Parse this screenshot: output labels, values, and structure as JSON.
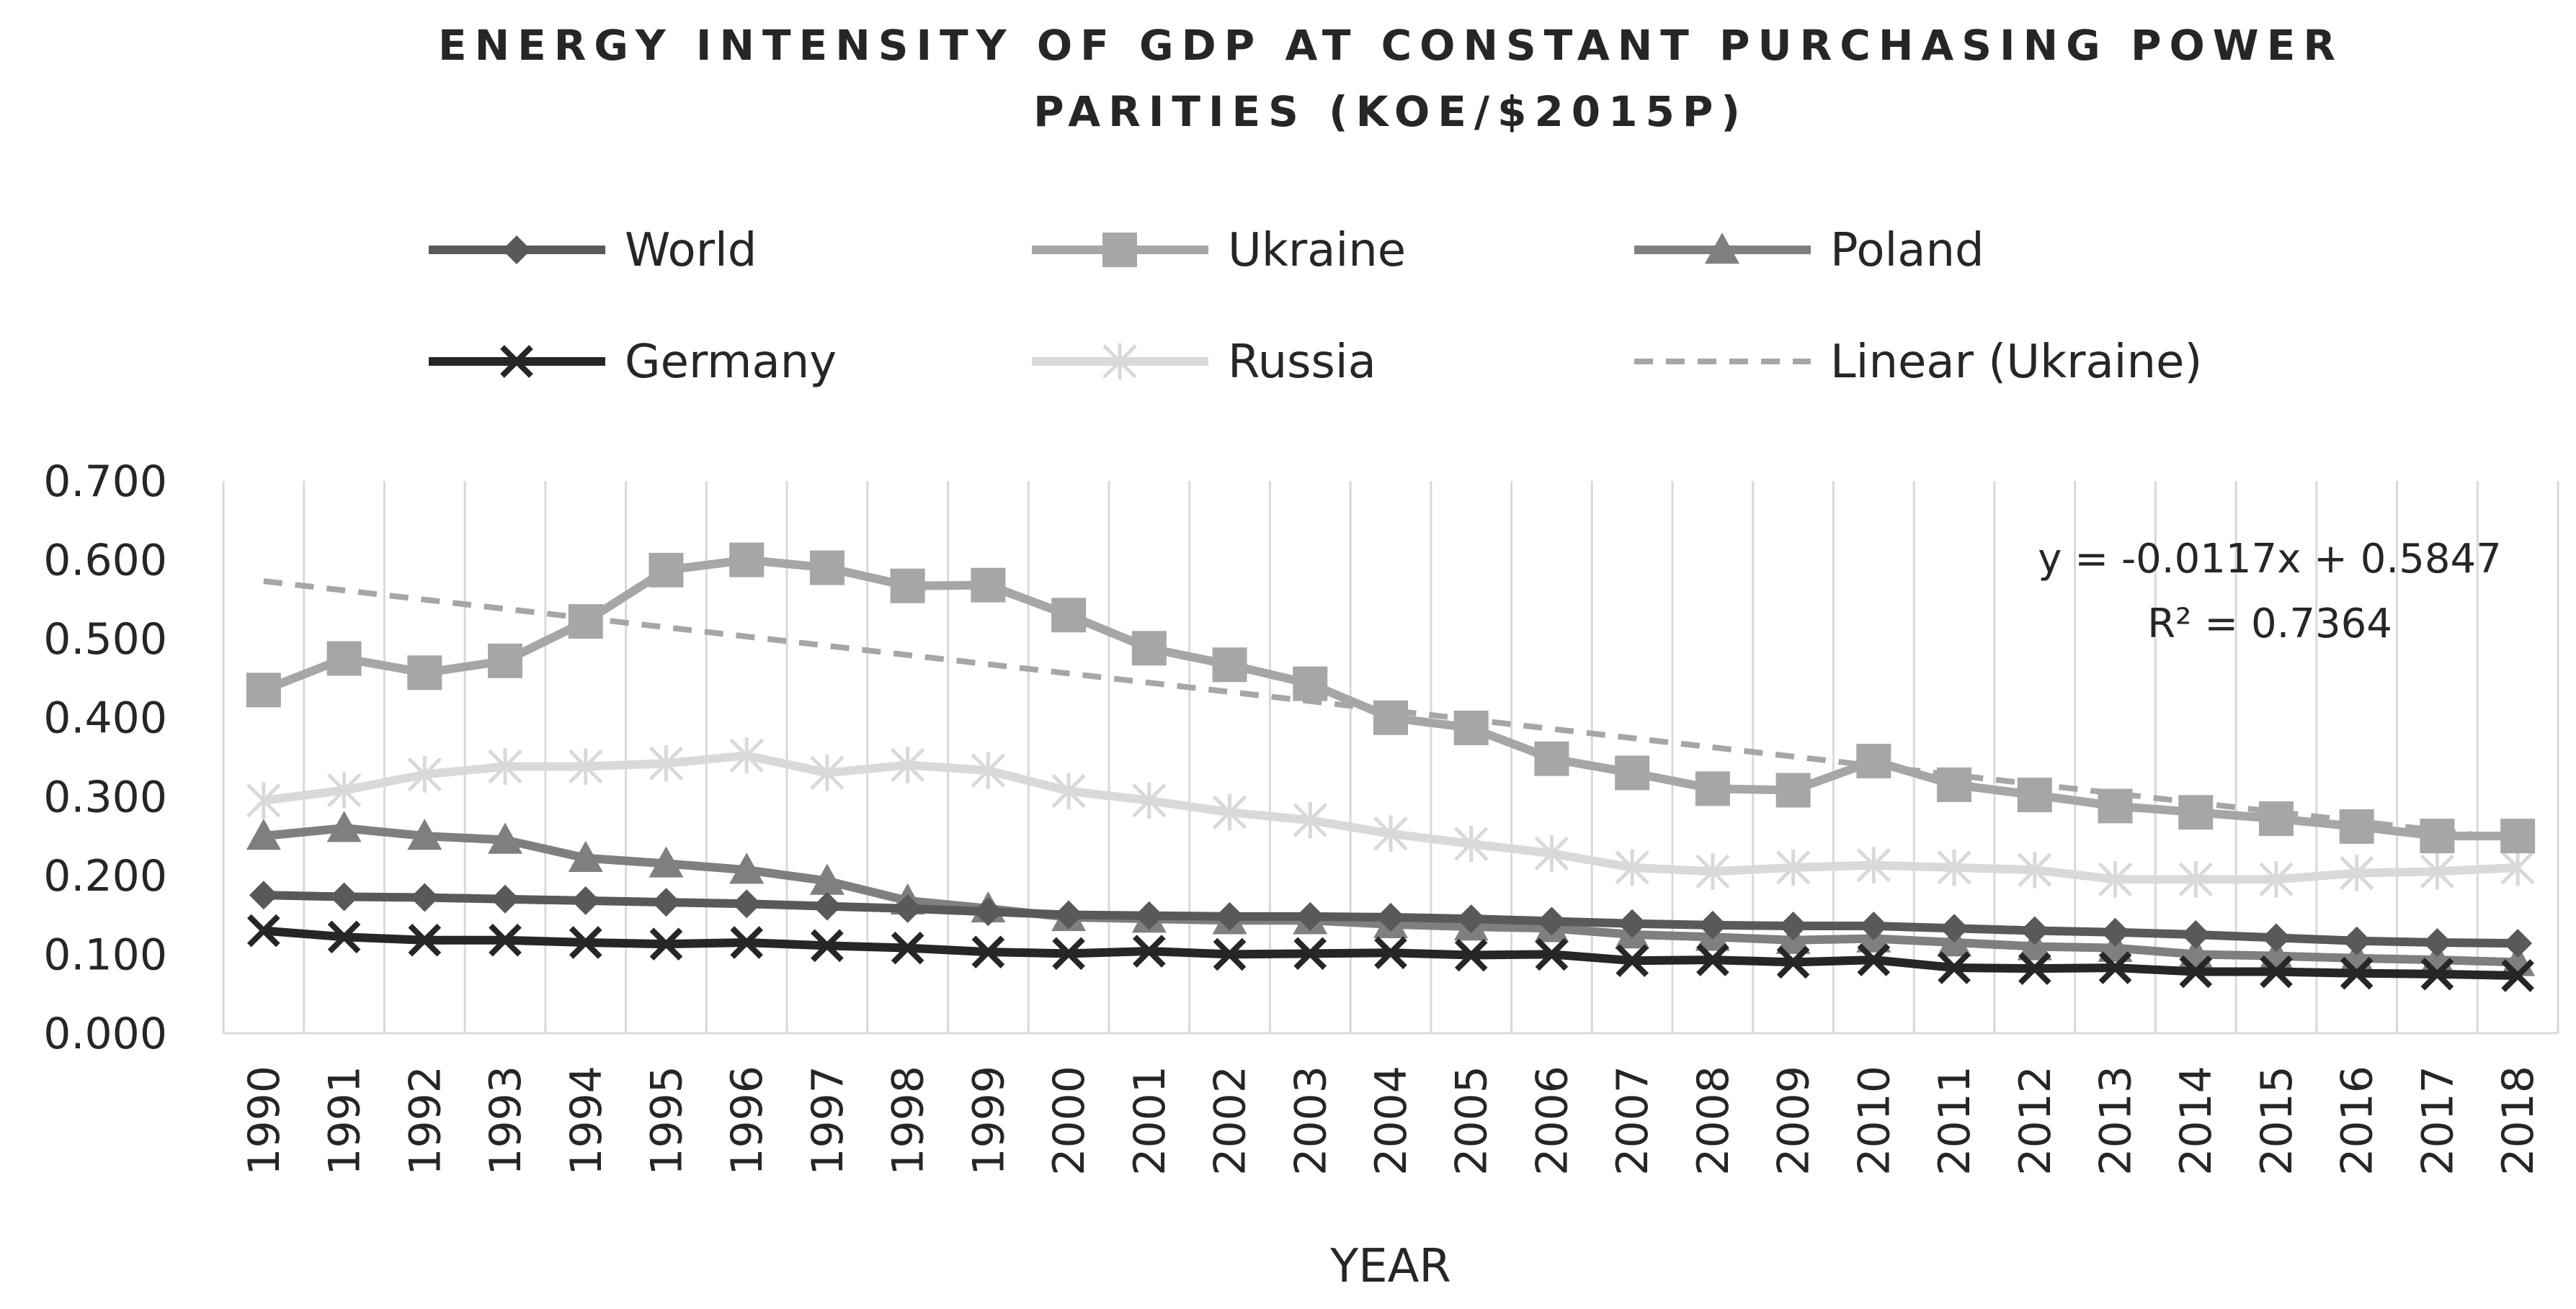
{
  "chart_data": {
    "type": "line",
    "title": "ENERGY INTENSITY OF GDP AT CONSTANT PURCHASING POWER PARITIES (KOE/$2015P)",
    "title_lines": [
      "ENERGY INTENSITY OF GDP AT CONSTANT PURCHASING POWER",
      "PARITIES (KOE/$2015P)"
    ],
    "xlabel": "YEAR",
    "ylabel": "",
    "ylim": [
      0,
      0.7
    ],
    "yticks": [
      "0.000",
      "0.100",
      "0.200",
      "0.300",
      "0.400",
      "0.500",
      "0.600",
      "0.700"
    ],
    "categories": [
      "1990",
      "1991",
      "1992",
      "1993",
      "1994",
      "1995",
      "1996",
      "1997",
      "1998",
      "1999",
      "2000",
      "2001",
      "2002",
      "2003",
      "2004",
      "2005",
      "2006",
      "2007",
      "2008",
      "2009",
      "2010",
      "2011",
      "2012",
      "2013",
      "2014",
      "2015",
      "2016",
      "2017",
      "2018"
    ],
    "grid": "vertical",
    "legend_position": "top",
    "series": [
      {
        "name": "World",
        "marker": "diamond",
        "color": "#595959",
        "style": "solid",
        "values": [
          0.175,
          0.173,
          0.172,
          0.17,
          0.168,
          0.166,
          0.164,
          0.161,
          0.158,
          0.154,
          0.15,
          0.149,
          0.148,
          0.148,
          0.147,
          0.145,
          0.142,
          0.139,
          0.137,
          0.136,
          0.136,
          0.133,
          0.13,
          0.128,
          0.125,
          0.121,
          0.117,
          0.115,
          0.114
        ]
      },
      {
        "name": "Ukraine",
        "marker": "square",
        "color": "#a6a6a6",
        "style": "solid",
        "values": [
          0.435,
          0.475,
          0.457,
          0.472,
          0.522,
          0.587,
          0.6,
          0.59,
          0.567,
          0.568,
          0.53,
          0.488,
          0.467,
          0.443,
          0.4,
          0.387,
          0.348,
          0.33,
          0.31,
          0.308,
          0.345,
          0.315,
          0.302,
          0.288,
          0.28,
          0.272,
          0.262,
          0.25,
          0.25
        ]
      },
      {
        "name": "Poland",
        "marker": "triangle",
        "color": "#7f7f7f",
        "style": "solid",
        "values": [
          0.25,
          0.26,
          0.25,
          0.245,
          0.222,
          0.215,
          0.207,
          0.193,
          0.168,
          0.158,
          0.147,
          0.145,
          0.143,
          0.143,
          0.138,
          0.135,
          0.133,
          0.125,
          0.122,
          0.118,
          0.12,
          0.115,
          0.11,
          0.108,
          0.1,
          0.098,
          0.095,
          0.093,
          0.09
        ]
      },
      {
        "name": "Germany",
        "marker": "x",
        "color": "#262626",
        "style": "solid",
        "values": [
          0.13,
          0.122,
          0.118,
          0.118,
          0.115,
          0.113,
          0.115,
          0.111,
          0.108,
          0.103,
          0.101,
          0.104,
          0.1,
          0.101,
          0.102,
          0.099,
          0.1,
          0.092,
          0.093,
          0.09,
          0.093,
          0.083,
          0.082,
          0.083,
          0.078,
          0.078,
          0.076,
          0.075,
          0.073
        ]
      },
      {
        "name": "Russia",
        "marker": "star",
        "color": "#d9d9d9",
        "style": "solid",
        "values": [
          0.295,
          0.308,
          0.328,
          0.338,
          0.338,
          0.342,
          0.352,
          0.33,
          0.34,
          0.333,
          0.307,
          0.295,
          0.28,
          0.27,
          0.253,
          0.24,
          0.228,
          0.21,
          0.205,
          0.21,
          0.213,
          0.21,
          0.207,
          0.195,
          0.195,
          0.195,
          0.203,
          0.205,
          0.21
        ]
      },
      {
        "name": "Linear (Ukraine)",
        "marker": "none",
        "color": "#a6a6a6",
        "style": "dashed",
        "trendline": {
          "slope": -0.0117,
          "intercept": 0.5847,
          "x_start": 1,
          "x_end": 29
        }
      }
    ],
    "annotations": [
      "y = -0.0117x + 0.5847",
      "R² = 0.7364"
    ]
  }
}
